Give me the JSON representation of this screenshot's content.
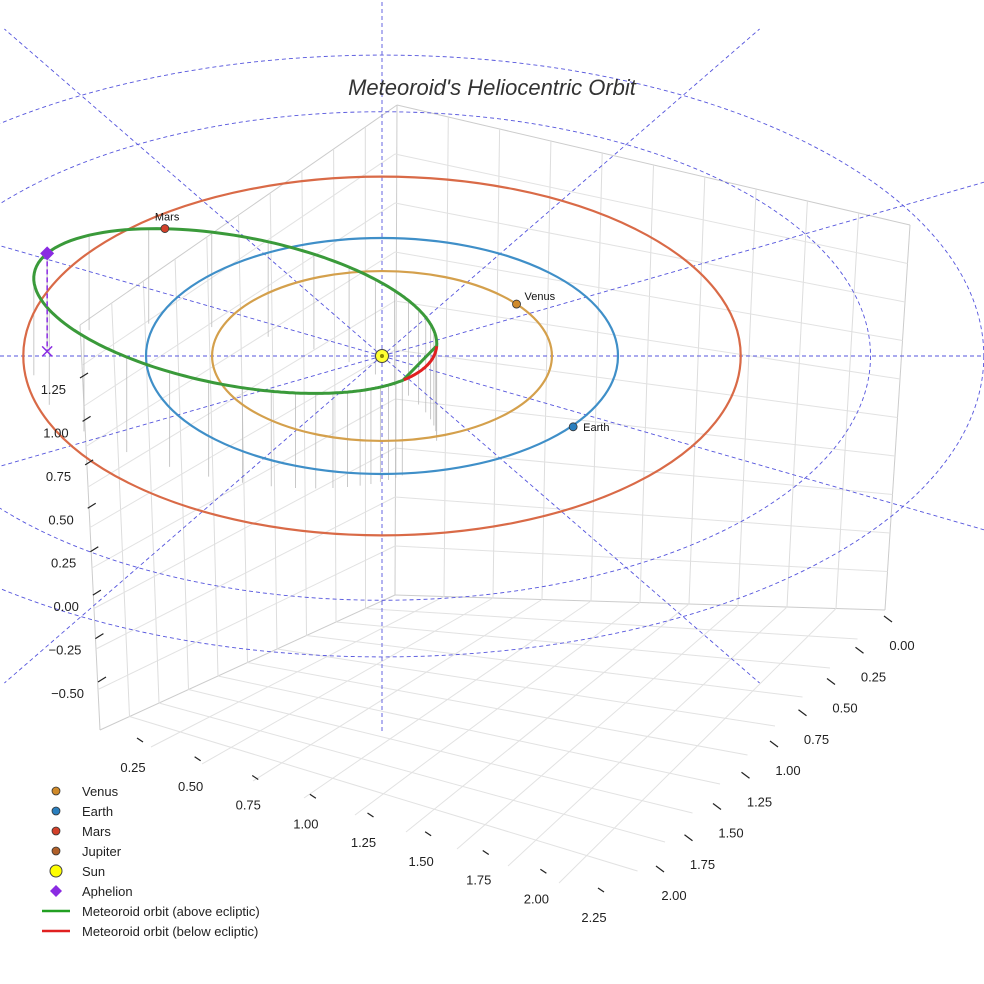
{
  "chart_data": {
    "type": "scatter",
    "projection": "3d",
    "title": "Meteoroid's Heliocentric Orbit",
    "axes": {
      "x": {
        "ticks": [
          "0.25",
          "0.50",
          "0.75",
          "1.00",
          "1.25",
          "1.50",
          "1.75",
          "2.00",
          "2.25"
        ]
      },
      "y": {
        "ticks": [
          "0.00",
          "0.25",
          "0.50",
          "0.75",
          "1.00",
          "1.25",
          "1.50",
          "1.75",
          "2.00"
        ]
      },
      "z": {
        "ticks": [
          "1.25",
          "1.00",
          "0.75",
          "0.50",
          "0.25",
          "0.00",
          "−0.25",
          "−0.50"
        ]
      }
    },
    "planet_orbits": [
      {
        "name": "Venus",
        "radius_au": 0.72,
        "color": "#d4a04c"
      },
      {
        "name": "Earth",
        "radius_au": 1.0,
        "color": "#3f8fc8"
      },
      {
        "name": "Mars",
        "radius_au": 1.52,
        "color": "#d96a47"
      }
    ],
    "points": [
      {
        "name": "Venus",
        "label": "Venus",
        "color": "#d08a2a"
      },
      {
        "name": "Earth",
        "label": "Earth",
        "color": "#2a7fbf"
      },
      {
        "name": "Mars",
        "label": "Mars",
        "color": "#d2402a"
      }
    ],
    "meteoroid_orbit": {
      "segment_above_color": "#3a9a3a",
      "segment_below_color": "#e02020",
      "aphelion_color": "#8a2be2"
    },
    "legend": [
      {
        "label": "Venus",
        "marker": "circle",
        "color": "#d08a2a"
      },
      {
        "label": "Earth",
        "marker": "circle",
        "color": "#2a7fbf"
      },
      {
        "label": "Mars",
        "marker": "circle",
        "color": "#d2402a"
      },
      {
        "label": "Jupiter",
        "marker": "circle",
        "color": "#b0602a"
      },
      {
        "label": "Sun",
        "marker": "circle-large",
        "color": "#ffff00"
      },
      {
        "label": "Aphelion",
        "marker": "diamond",
        "color": "#8a2be2"
      },
      {
        "label": "Meteoroid orbit (above ecliptic)",
        "marker": "line",
        "color": "#22a022"
      },
      {
        "label": "Meteoroid orbit (below ecliptic)",
        "marker": "line",
        "color": "#e02020"
      }
    ]
  }
}
